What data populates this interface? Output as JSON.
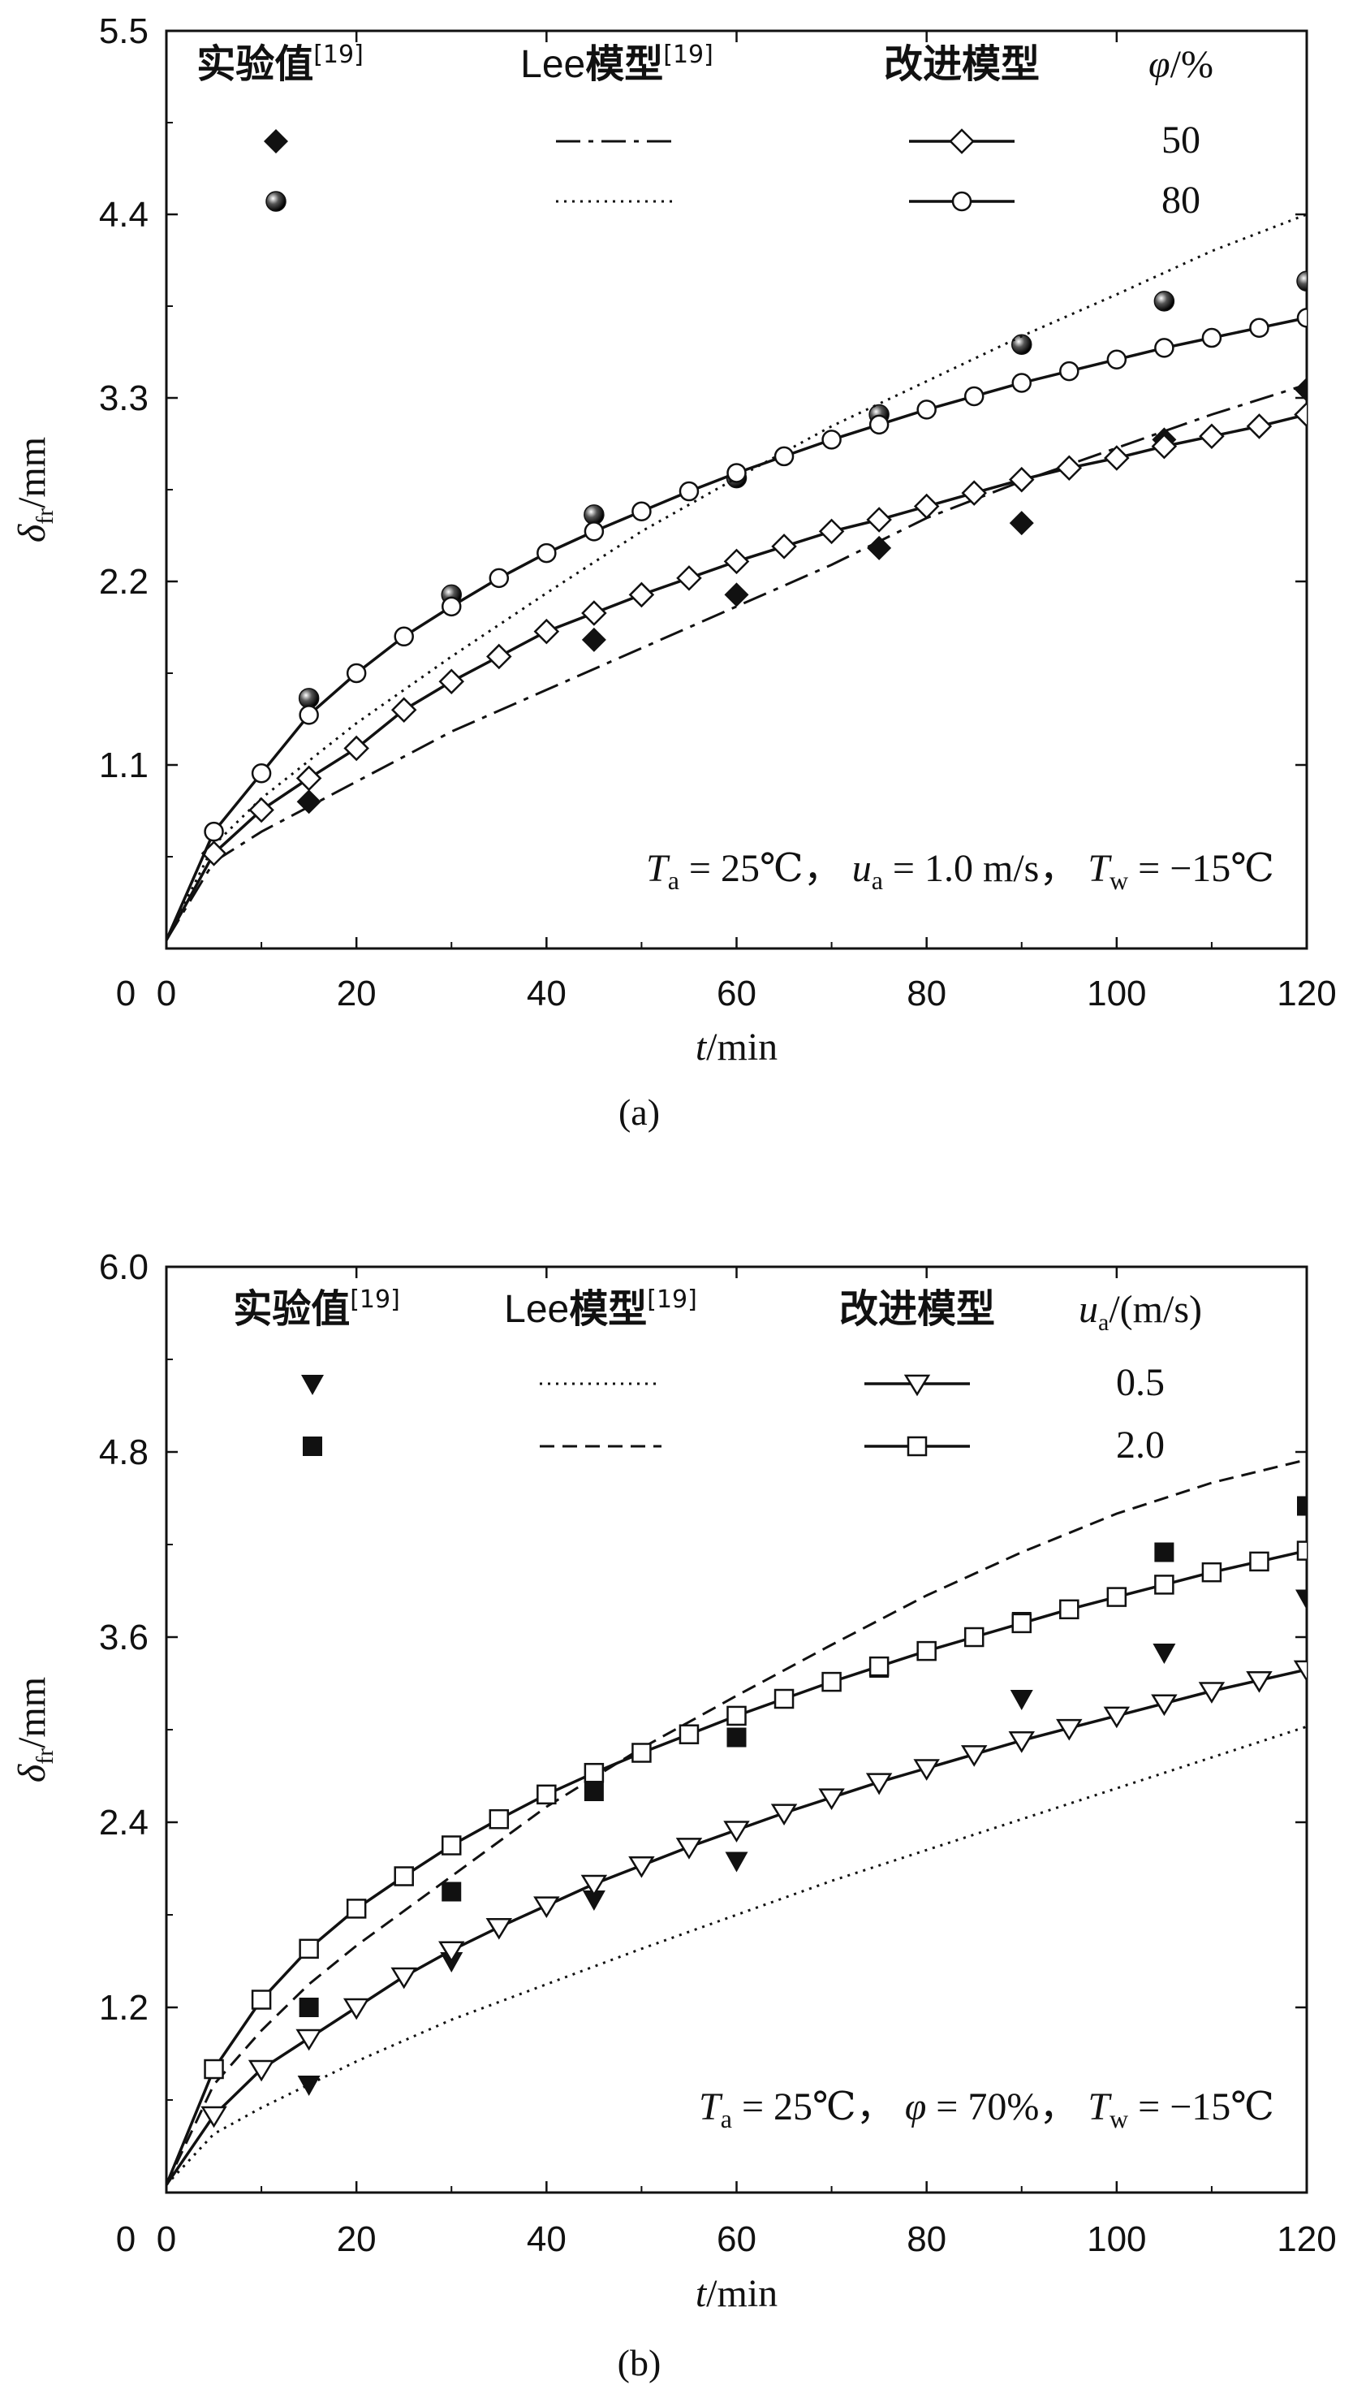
{
  "chart_data": [
    {
      "id": "a",
      "type": "line",
      "caption": "(a)",
      "xlabel": "t/min",
      "ylabel": "δfr/mm",
      "xlim": [
        0,
        120
      ],
      "ylim": [
        0,
        5.5
      ],
      "xticks": [
        "0",
        "20",
        "40",
        "60",
        "80",
        "100",
        "120"
      ],
      "yticks": [
        "1.1",
        "2.2",
        "3.3",
        "4.4",
        "5.5"
      ],
      "ytick_values": [
        1.1,
        2.2,
        3.3,
        4.4,
        5.5
      ],
      "legend": {
        "col1": "实验值[19]",
        "col2": "Lee模型[19]",
        "col3": "改进模型",
        "col4": "φ/%",
        "row_values": [
          "50",
          "80"
        ]
      },
      "annotation": "Ta = 25℃， ua = 1.0 m/s， Tw = −15℃",
      "series": [
        {
          "name": "实验值 φ=50",
          "kind": "scatter",
          "marker": "filled-diamond",
          "x": [
            15,
            30,
            45,
            60,
            75,
            90,
            105,
            120
          ],
          "y": [
            0.88,
            1.6,
            1.85,
            2.12,
            2.4,
            2.55,
            3.05,
            3.35
          ]
        },
        {
          "name": "实验值 φ=80",
          "kind": "scatter",
          "marker": "filled-ball",
          "x": [
            15,
            30,
            45,
            60,
            75,
            90,
            105,
            120
          ],
          "y": [
            1.5,
            2.12,
            2.6,
            2.82,
            3.2,
            3.62,
            3.88,
            4.0
          ]
        },
        {
          "name": "Lee模型 φ=50",
          "kind": "line",
          "dash": "dashdot",
          "x": [
            0,
            5,
            10,
            15,
            20,
            30,
            40,
            50,
            60,
            70,
            80,
            90,
            100,
            110,
            120
          ],
          "y": [
            0.05,
            0.52,
            0.7,
            0.85,
            1.0,
            1.3,
            1.55,
            1.8,
            2.05,
            2.3,
            2.58,
            2.8,
            3.0,
            3.2,
            3.38
          ]
        },
        {
          "name": "Lee模型 φ=80",
          "kind": "line",
          "dash": "dotted",
          "x": [
            0,
            5,
            10,
            20,
            30,
            40,
            50,
            60,
            70,
            80,
            90,
            100,
            110,
            120
          ],
          "y": [
            0.05,
            0.62,
            0.9,
            1.35,
            1.75,
            2.13,
            2.5,
            2.82,
            3.13,
            3.4,
            3.67,
            3.92,
            4.18,
            4.4
          ]
        },
        {
          "name": "改进模型 φ=50",
          "kind": "line-marker",
          "marker": "open-diamond",
          "x": [
            0,
            5,
            10,
            15,
            20,
            25,
            30,
            35,
            40,
            45,
            50,
            55,
            60,
            65,
            70,
            75,
            80,
            85,
            90,
            95,
            100,
            105,
            110,
            115,
            120
          ],
          "y": [
            0.05,
            0.57,
            0.83,
            1.02,
            1.2,
            1.43,
            1.6,
            1.75,
            1.9,
            2.01,
            2.12,
            2.22,
            2.32,
            2.41,
            2.5,
            2.57,
            2.65,
            2.73,
            2.81,
            2.88,
            2.94,
            3.01,
            3.07,
            3.13,
            3.2
          ]
        },
        {
          "name": "改进模型 φ=80",
          "kind": "line-marker",
          "marker": "open-circle",
          "x": [
            0,
            5,
            10,
            15,
            20,
            25,
            30,
            35,
            40,
            45,
            50,
            55,
            60,
            65,
            70,
            75,
            80,
            85,
            90,
            95,
            100,
            105,
            110,
            115,
            120
          ],
          "y": [
            0.05,
            0.7,
            1.05,
            1.4,
            1.65,
            1.87,
            2.05,
            2.22,
            2.37,
            2.5,
            2.62,
            2.74,
            2.85,
            2.95,
            3.05,
            3.14,
            3.23,
            3.31,
            3.39,
            3.46,
            3.53,
            3.6,
            3.66,
            3.72,
            3.78
          ]
        }
      ]
    },
    {
      "id": "b",
      "type": "line",
      "caption": "(b)",
      "xlabel": "t/min",
      "ylabel": "δfr/mm",
      "xlim": [
        0,
        120
      ],
      "ylim": [
        0,
        6.0
      ],
      "xticks": [
        "0",
        "20",
        "40",
        "60",
        "80",
        "100",
        "120"
      ],
      "yticks": [
        "1.2",
        "2.4",
        "3.6",
        "4.8",
        "6.0"
      ],
      "ytick_values": [
        1.2,
        2.4,
        3.6,
        4.8,
        6.0
      ],
      "legend": {
        "col1": "实验值[19]",
        "col2": "Lee模型[19]",
        "col3": "改进模型",
        "col4": "ua/(m/s)",
        "row_values": [
          "0.5",
          "2.0"
        ]
      },
      "annotation": "Ta = 25℃， φ = 70%， Tw = −15℃",
      "series": [
        {
          "name": "实验值 ua=0.5",
          "kind": "scatter",
          "marker": "filled-triangle-down",
          "x": [
            15,
            30,
            45,
            60,
            75,
            90,
            105,
            120
          ],
          "y": [
            0.7,
            1.5,
            1.9,
            2.15,
            2.65,
            3.2,
            3.5,
            3.85
          ]
        },
        {
          "name": "实验值 ua=2.0",
          "kind": "scatter",
          "marker": "filled-square",
          "x": [
            15,
            30,
            45,
            60,
            75,
            90,
            105,
            120
          ],
          "y": [
            1.2,
            1.95,
            2.6,
            2.95,
            3.4,
            3.7,
            4.15,
            4.45
          ]
        },
        {
          "name": "Lee模型 ua=0.5",
          "kind": "line",
          "dash": "dotted",
          "x": [
            0,
            5,
            10,
            20,
            30,
            40,
            50,
            60,
            70,
            80,
            90,
            100,
            110,
            120
          ],
          "y": [
            0.05,
            0.38,
            0.55,
            0.85,
            1.12,
            1.35,
            1.58,
            1.8,
            2.02,
            2.22,
            2.42,
            2.62,
            2.82,
            3.02
          ]
        },
        {
          "name": "Lee模型 ua=2.0",
          "kind": "line",
          "dash": "dashed",
          "x": [
            0,
            5,
            10,
            15,
            20,
            30,
            40,
            50,
            60,
            70,
            80,
            90,
            100,
            110,
            120
          ],
          "y": [
            0.05,
            0.7,
            1.05,
            1.35,
            1.6,
            2.05,
            2.5,
            2.88,
            3.22,
            3.55,
            3.87,
            4.15,
            4.4,
            4.6,
            4.75
          ]
        },
        {
          "name": "改进模型 ua=0.5",
          "kind": "line-marker",
          "marker": "open-triangle-down",
          "x": [
            0,
            5,
            10,
            15,
            20,
            25,
            30,
            35,
            40,
            45,
            50,
            55,
            60,
            65,
            70,
            75,
            80,
            85,
            90,
            95,
            100,
            105,
            110,
            115,
            120
          ],
          "y": [
            0.05,
            0.5,
            0.8,
            1.0,
            1.2,
            1.4,
            1.57,
            1.72,
            1.86,
            2.0,
            2.12,
            2.24,
            2.35,
            2.46,
            2.56,
            2.66,
            2.75,
            2.84,
            2.93,
            3.01,
            3.09,
            3.17,
            3.25,
            3.32,
            3.39
          ]
        },
        {
          "name": "改进模型 ua=2.0",
          "kind": "line-marker",
          "marker": "open-square",
          "x": [
            0,
            5,
            10,
            15,
            20,
            25,
            30,
            35,
            40,
            45,
            50,
            55,
            60,
            65,
            70,
            75,
            80,
            85,
            90,
            95,
            100,
            105,
            110,
            115,
            120
          ],
          "y": [
            0.05,
            0.8,
            1.25,
            1.58,
            1.84,
            2.05,
            2.25,
            2.42,
            2.58,
            2.72,
            2.85,
            2.97,
            3.09,
            3.2,
            3.31,
            3.41,
            3.51,
            3.6,
            3.69,
            3.78,
            3.86,
            3.94,
            4.02,
            4.09,
            4.16
          ]
        }
      ]
    }
  ]
}
